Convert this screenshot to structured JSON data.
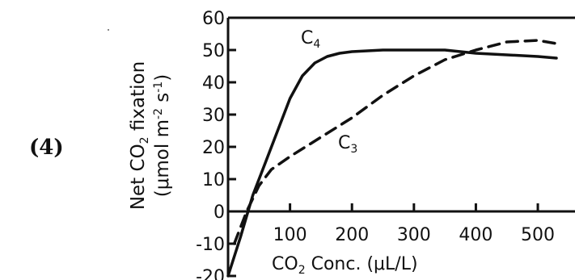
{
  "option": {
    "label": "(4)"
  },
  "chart_data": {
    "type": "line",
    "ylabel_line1": "Net CO",
    "ylabel_sub": "2",
    "ylabel_line1_rest": " fixation",
    "ylabel_line2_prefix": "(μmol m",
    "ylabel_sup1": "-2",
    "ylabel_mid": " s",
    "ylabel_sup2": "-1",
    "ylabel_suffix": ")",
    "xlabel_prefix": "CO",
    "xlabel_sub": "2",
    "xlabel_rest": " Conc. (μL/L)",
    "xlim": [
      0,
      560
    ],
    "ylim": [
      -20,
      60
    ],
    "x_ticks": [
      100,
      200,
      300,
      400,
      500
    ],
    "y_ticks": [
      -20,
      -10,
      0,
      10,
      20,
      30,
      40,
      50,
      60
    ],
    "series": [
      {
        "name": "C4",
        "name_main": "C",
        "name_sub": "4",
        "style": "solid",
        "x": [
          0,
          20,
          40,
          60,
          80,
          100,
          120,
          140,
          160,
          180,
          200,
          250,
          300,
          350,
          400,
          450,
          500,
          530
        ],
        "y": [
          -20,
          -8,
          5,
          15,
          25,
          35,
          42,
          46,
          48,
          49,
          49.5,
          50,
          50,
          50,
          49,
          48.5,
          48,
          47.5
        ]
      },
      {
        "name": "C3",
        "name_main": "C",
        "name_sub": "3",
        "style": "dashed",
        "x": [
          10,
          30,
          50,
          70,
          100,
          150,
          200,
          250,
          300,
          350,
          400,
          450,
          500,
          530
        ],
        "y": [
          -10,
          0,
          8,
          13,
          17,
          23,
          29,
          36,
          42,
          47,
          50,
          52.5,
          53,
          52
        ]
      }
    ]
  }
}
